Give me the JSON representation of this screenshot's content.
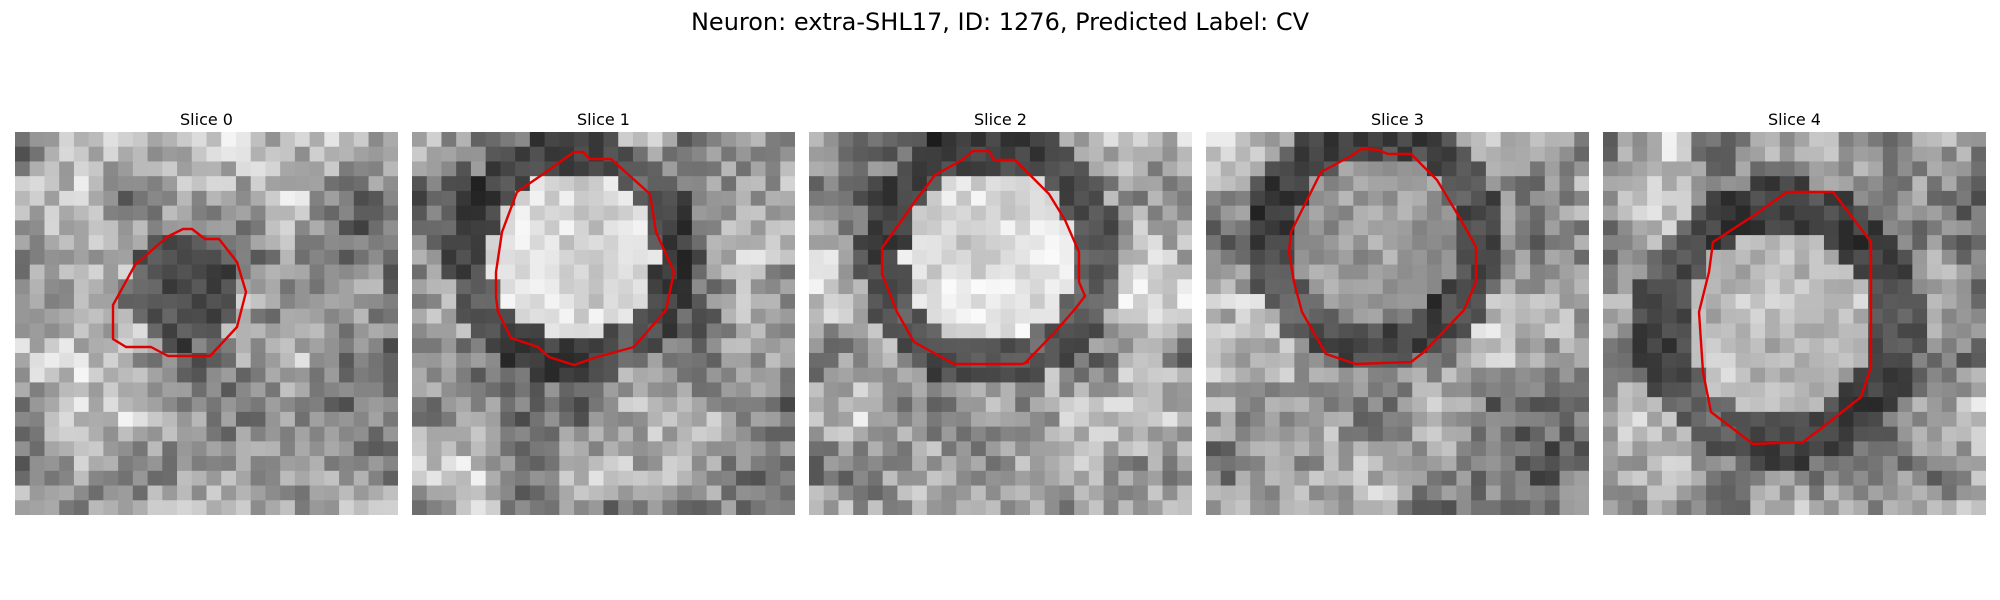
{
  "figure": {
    "title": "Neuron: extra-SHL17, ID: 1276, Predicted Label: CV"
  },
  "slices": [
    {
      "title": "Slice 0",
      "seed": 11,
      "bright": 0,
      "ring": 0
    },
    {
      "title": "Slice 1",
      "seed": 23,
      "bright": 1,
      "ring": 1
    },
    {
      "title": "Slice 2",
      "seed": 37,
      "bright": 1,
      "ring": 1
    },
    {
      "title": "Slice 3",
      "seed": 53,
      "bright": 0.5,
      "ring": 1
    },
    {
      "title": "Slice 4",
      "seed": 71,
      "bright": 0.8,
      "ring": 1
    }
  ],
  "colors": {
    "contour": "#e00000",
    "background": "#ffffff"
  }
}
